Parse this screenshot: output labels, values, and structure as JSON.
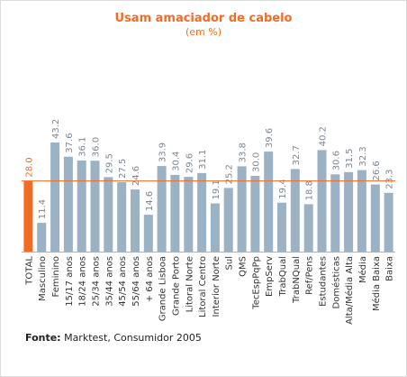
{
  "chart_data": {
    "type": "bar",
    "title": "Usam amaciador de cabelo",
    "subtitle": "(em %)",
    "categories": [
      "TOTAL",
      "Masculino",
      "Feminino",
      "15/17 anos",
      "18/24 anos",
      "25/34 anos",
      "35/44 anos",
      "45/54 anos",
      "55/64 anos",
      "+ 64 anos",
      "Grande Lisboa",
      "Grande Porto",
      "Litoral Norte",
      "Litoral Centro",
      "Interior Norte",
      "Sul",
      "QMS",
      "TecEspPqPp",
      "EmpServ",
      "TrabQual",
      "TrabNQual",
      "Ref/Pens",
      "Estudantes",
      "Domésticas",
      "Alta/Média Alta",
      "Média",
      "Média Baixa",
      "Baixa"
    ],
    "values": [
      28.0,
      11.4,
      43.2,
      37.6,
      36.1,
      36.0,
      29.5,
      27.5,
      24.6,
      14.6,
      33.9,
      30.4,
      29.6,
      31.1,
      19.1,
      25.2,
      33.8,
      30.0,
      39.6,
      19.4,
      32.7,
      18.8,
      40.2,
      30.6,
      31.5,
      32.3,
      26.6,
      23.3
    ],
    "value_labels": [
      "28.0",
      "11.4",
      "43.2",
      "37.6",
      "36.1",
      "36.0",
      "29.5",
      "27.5",
      "24.6",
      "14.6",
      "33.9",
      "30.4",
      "29.6",
      "31.1",
      "19.1",
      "25.2",
      "33.8",
      "30.0",
      "39.6",
      "19.4",
      "32.7",
      "18.8",
      "40.2",
      "30.6",
      "31.5",
      "32.3",
      "26.6",
      "23.3"
    ],
    "highlight_index": 0,
    "reference_line": 28.0,
    "ylim": [
      0,
      50
    ],
    "grid": false,
    "colors": {
      "bar": "#9bb1c4",
      "highlight": "#f26b22",
      "reference_line": "#f26b22",
      "value_label": "#7a8590",
      "highlight_label": "#f26b22",
      "tick_label": "#333333",
      "baseline": "#aab4bd"
    }
  },
  "source": {
    "label": "Fonte:",
    "text": "Marktest, Consumidor 2005"
  }
}
